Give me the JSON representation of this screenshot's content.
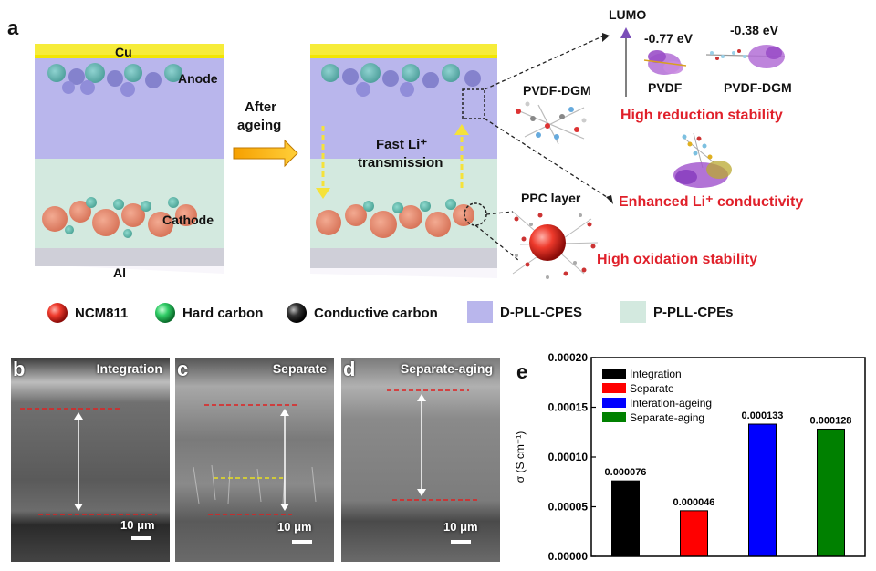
{
  "panel_a": {
    "letter": "a",
    "cell_left": {
      "top_label": "Cu",
      "anode": "Anode",
      "cathode": "Cathode",
      "bottom_label": "Al"
    },
    "arrow_label_line1": "After",
    "arrow_label_line2": "ageing",
    "cell_right": {
      "label_line1": "Fast Li⁺",
      "label_line2": "transmission"
    },
    "pvdf_dgm_label": "PVDF-DGM",
    "ppc_label": "PPC layer",
    "lumo": {
      "axis_label": "LUMO",
      "pvdf_value": "-0.77 eV",
      "pvdf_name": "PVDF",
      "dgm_value": "-0.38 eV",
      "dgm_name": "PVDF-DGM"
    },
    "claims": {
      "reduction": "High reduction stability",
      "conductivity": "Enhanced Li⁺ conductivity",
      "oxidation": "High oxidation stability"
    },
    "colors": {
      "red_text": "#e0202a",
      "cu": "#f2e600",
      "anode": "#b9b6ec",
      "cathode": "#d3e9df"
    }
  },
  "legend": [
    {
      "label": "NCM811",
      "shape": "red-sphere"
    },
    {
      "label": "Hard carbon",
      "shape": "green-sphere"
    },
    {
      "label": "Conductive carbon",
      "shape": "black-sphere"
    },
    {
      "label": "D-PLL-CPES",
      "shape": "lavender-square"
    },
    {
      "label": "P-PLL-CPEs",
      "shape": "mint-square"
    }
  ],
  "sem": [
    {
      "letter": "b",
      "title": "Integration",
      "scale": "10 μm"
    },
    {
      "letter": "c",
      "title": "Separate",
      "scale": "10 μm"
    },
    {
      "letter": "d",
      "title": "Separate-aging",
      "scale": "10 μm"
    }
  ],
  "panel_e_letter": "e",
  "chart_data": {
    "type": "bar",
    "ylabel": "σ (S cm⁻¹)",
    "ylim": [
      0,
      0.0002
    ],
    "yticks": [
      "0.00000",
      "0.00005",
      "0.00010",
      "0.00015",
      "0.00020"
    ],
    "yticks_values": [
      0,
      5e-05,
      0.0001,
      0.00015,
      0.0002
    ],
    "grid": false,
    "legend_position": "top-left",
    "series": [
      {
        "name": "Integration",
        "value": 7.6e-05,
        "label": "0.000076",
        "color": "#000000"
      },
      {
        "name": "Separate",
        "value": 4.6e-05,
        "label": "0.000046",
        "color": "#ff0000"
      },
      {
        "name": "Interation-ageing",
        "value": 0.000133,
        "label": "0.000133",
        "color": "#0000ff"
      },
      {
        "name": "Separate-aging",
        "value": 0.000128,
        "label": "0.000128",
        "color": "#008000"
      }
    ]
  }
}
